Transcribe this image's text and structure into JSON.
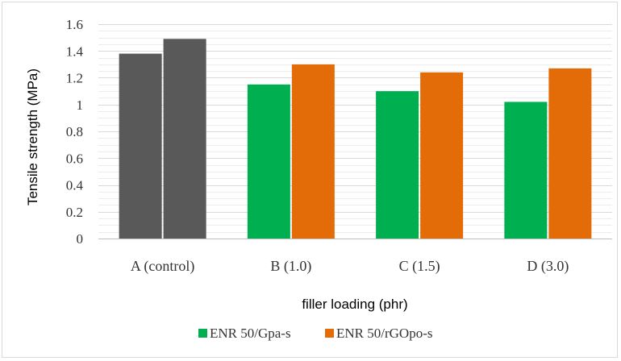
{
  "chart_data": {
    "type": "bar",
    "title": "",
    "xlabel": "filler loading (phr)",
    "ylabel": "Tensile strength (MPa)",
    "categories": [
      "A (control)",
      "B (1.0)",
      "C (1.5)",
      "D (3.0)"
    ],
    "series": [
      {
        "name": "ENR 50/Gpa-s",
        "color": "#00b050",
        "values": [
          1.38,
          1.15,
          1.1,
          1.02
        ]
      },
      {
        "name": "ENR 50/rGOpo-s",
        "color": "#e36c09",
        "values": [
          1.49,
          1.3,
          1.24,
          1.27
        ]
      }
    ],
    "control_color": "#595959",
    "ylim": [
      0,
      1.6
    ],
    "yticks": [
      "0",
      "0.2",
      "0.4",
      "0.6",
      "0.8",
      "1",
      "1.2",
      "1.4",
      "1.6"
    ],
    "grid": true,
    "legend_position": "bottom"
  }
}
